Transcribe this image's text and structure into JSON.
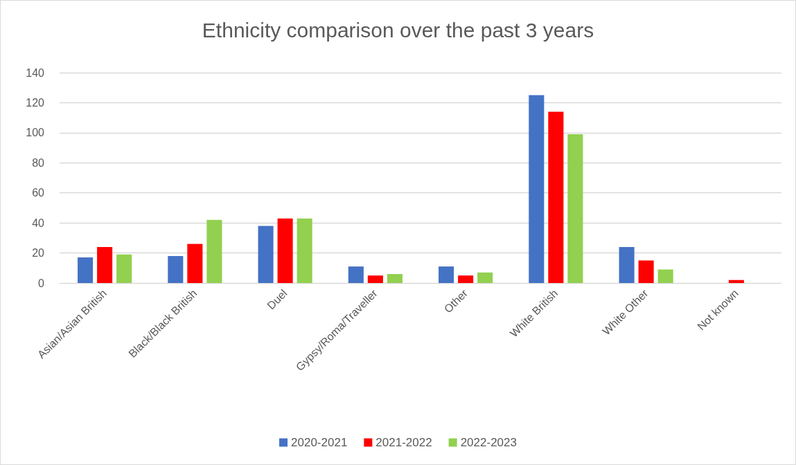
{
  "chart_data": {
    "type": "bar",
    "title": "Ethnicity comparison over the past 3 years",
    "categories": [
      "Asian/Asian British",
      "Black/Black British",
      "Duel",
      "Gypsy/Roma/Traveller",
      "Other",
      "White British",
      "White Other",
      "Not known"
    ],
    "series": [
      {
        "name": "2020-2021",
        "color": "#4472c4",
        "values": [
          17,
          18,
          38,
          11,
          11,
          125,
          24,
          0
        ]
      },
      {
        "name": "2021-2022",
        "color": "#ff0000",
        "values": [
          24,
          26,
          43,
          5,
          5,
          114,
          15,
          2
        ]
      },
      {
        "name": "2022-2023",
        "color": "#92d050",
        "values": [
          19,
          42,
          43,
          6,
          7,
          99,
          9,
          0
        ]
      }
    ],
    "ylim": [
      0,
      140
    ],
    "yticks": [
      0,
      20,
      40,
      60,
      80,
      100,
      120,
      140
    ],
    "grid": "y",
    "legend": "bottom"
  }
}
